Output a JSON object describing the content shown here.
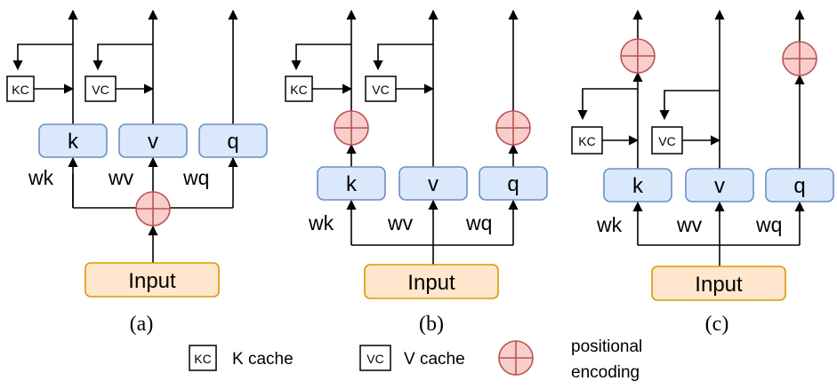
{
  "panels": [
    {
      "caption": "(a)",
      "input_label": "Input",
      "projections": [
        {
          "label": "k",
          "weight": "wk"
        },
        {
          "label": "v",
          "weight": "wv"
        },
        {
          "label": "q",
          "weight": "wq"
        }
      ],
      "caches": [
        "KC",
        "VC"
      ]
    },
    {
      "caption": "(b)",
      "input_label": "Input",
      "projections": [
        {
          "label": "k",
          "weight": "wk"
        },
        {
          "label": "v",
          "weight": "wv"
        },
        {
          "label": "q",
          "weight": "wq"
        }
      ],
      "caches": [
        "KC",
        "VC"
      ]
    },
    {
      "caption": "(c)",
      "input_label": "Input",
      "projections": [
        {
          "label": "k",
          "weight": "wk"
        },
        {
          "label": "v",
          "weight": "wv"
        },
        {
          "label": "q",
          "weight": "wq"
        }
      ],
      "caches": [
        "KC",
        "VC"
      ]
    }
  ],
  "legend": {
    "kc_symbol": "KC",
    "kc_text": "K cache",
    "vc_symbol": "VC",
    "vc_text": "V cache",
    "pe_text_line1": "positional",
    "pe_text_line2": "encoding"
  },
  "colors": {
    "proj_fill": "#dae8fc",
    "proj_stroke": "#6c8ebf",
    "input_fill": "#ffe6cc",
    "input_stroke": "#d79b00",
    "pe_fill": "#f8cecc",
    "pe_stroke": "#b85450"
  }
}
